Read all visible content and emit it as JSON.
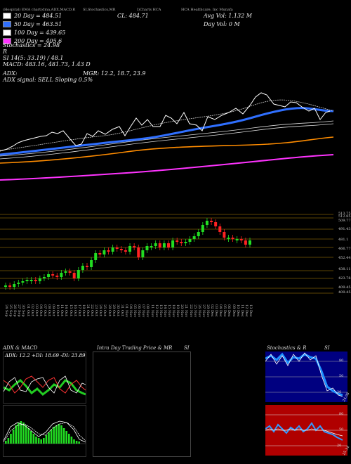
{
  "header": {
    "top_left_small": "(Hospital) EMA chart(dma,ADX,MACD,R",
    "top_mid_small": "SI,Stochastics,MR",
    "top_mid2_small": "I)Charts HCA",
    "top_right_small": "HCA Healthcare, Inc Munafa",
    "cl_label": "CL: 484.71",
    "avg_vol": "Avg Vol: 1.132  M",
    "day_vol": "Day Vol: 0   M"
  },
  "legend": [
    {
      "text": "20 Day = 484.51",
      "color": "#ffffff"
    },
    {
      "text": "50 Day = 463.51",
      "color": "#2f6fff"
    },
    {
      "text": "100 Day = 439.65",
      "color": "#ffffff"
    },
    {
      "text": "200 Day = 405.6",
      "color": "#ff33ff"
    }
  ],
  "indicators": {
    "stochastics": "Stochastics = 24.98",
    "r_label": "R",
    "si_label": "SI 14(5: 33.19) / 48.1",
    "macd": "MACD: 483.16, 481.73, 1.43 D",
    "adx_label": "ADX:",
    "mgr": "MGR: 12.2, 18.7, 23.9",
    "adx_signal": "ADX  signal: SELL Sloping 0.5%"
  },
  "price_levels": [
    "513.75",
    "512.85",
    "509.77",
    "491.43",
    "481.1",
    "466.77",
    "452.44",
    "438.11",
    "423.78",
    "409.45",
    "409.45"
  ],
  "dates": [
    "24 Sep",
    "25 Sep",
    "26 Sep",
    "27 Sep",
    "30 Sep",
    "01 Oct",
    "02 Oct",
    "03 Oct",
    "04 Oct",
    "07 Oct",
    "08 Oct",
    "09 Oct",
    "10 Oct",
    "11 Oct",
    "14 Oct",
    "15 Oct",
    "16 Oct",
    "17 Oct",
    "18 Oct",
    "21 Oct",
    "22 Oct",
    "23 Oct",
    "24 Oct",
    "25 Oct",
    "28 Oct",
    "29 Oct",
    "30 Oct",
    "31 Oct",
    "01 Nov",
    "04 Nov",
    "05 Nov",
    "06 Nov",
    "07 Nov",
    "08 Nov",
    "11 Nov",
    "12 Nov",
    "13 Nov",
    "14 Nov",
    "15 Nov",
    "18 Nov",
    "19 Nov",
    "20 Nov",
    "21 Nov",
    "22 Nov",
    "25 Nov",
    "26 Nov",
    "27 Nov",
    "29 Nov",
    "02 Dec",
    "03 Dec",
    "04 Dec",
    "05 Dec",
    "06 Dec",
    "09 Dec",
    "10 Dec",
    "11 Dec",
    "12 Dec",
    "13 Dec"
  ],
  "panels": {
    "adx_title": "ADX  & MACD",
    "adx_values": "ADX: 12.2  +DI: 18.69 -DI: 23.89",
    "intraday_title": "Intra  Day Trading Price  & MR",
    "intraday_si": "SI",
    "stoch_title": "Stochastics & R",
    "stoch_si": "SI",
    "stoch_axis": [
      "80",
      "50",
      "20"
    ],
    "stoch_value": "24.98",
    "rsi_axis": [
      "80",
      "50",
      "20"
    ],
    "rsi_value": "25.34"
  }
}
